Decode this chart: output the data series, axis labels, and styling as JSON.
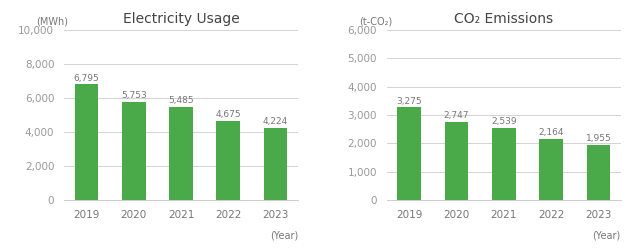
{
  "years": [
    "2019",
    "2020",
    "2021",
    "2022",
    "2023"
  ],
  "electricity_values": [
    6795,
    5753,
    5485,
    4675,
    4224
  ],
  "co2_values": [
    3275,
    2747,
    2539,
    2164,
    1955
  ],
  "bar_color": "#4aaa4a",
  "elec_title": "Electricity Usage",
  "co2_title": "CO₂ Emissions",
  "elec_ylabel": "(MWh)",
  "co2_ylabel": "(t-CO₂)",
  "xlabel": "(Year)",
  "elec_ylim": [
    0,
    10000
  ],
  "co2_ylim": [
    0,
    6000
  ],
  "elec_yticks": [
    0,
    2000,
    4000,
    6000,
    8000,
    10000
  ],
  "co2_yticks": [
    0,
    1000,
    2000,
    3000,
    4000,
    5000,
    6000
  ],
  "title_fontsize": 10,
  "tick_fontsize": 7.5,
  "label_fontsize": 7,
  "value_fontsize": 6.5,
  "background_color": "#ffffff",
  "grid_color": "#cccccc",
  "tick_color": "#999999",
  "text_color": "#777777",
  "title_color": "#444444"
}
